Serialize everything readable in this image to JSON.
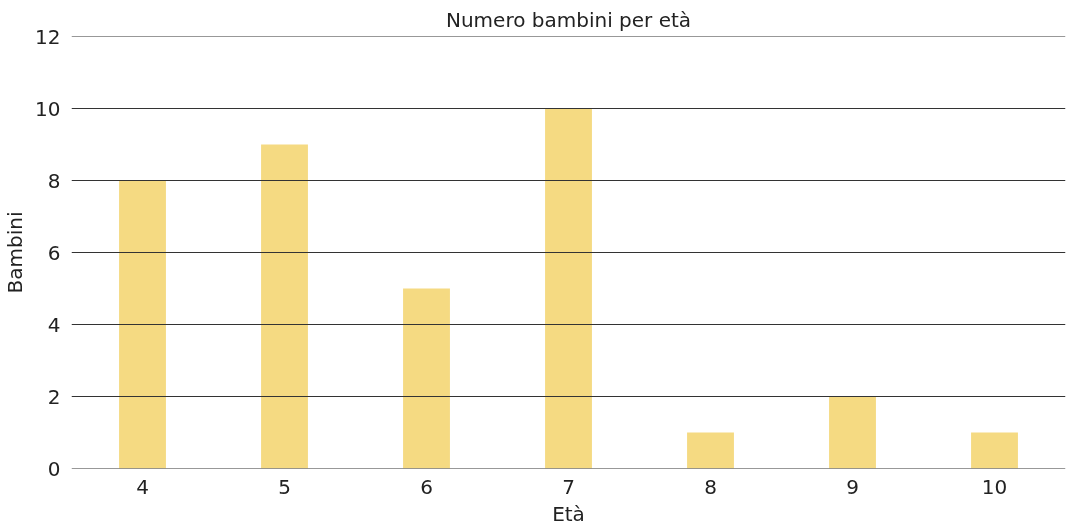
{
  "chart_data": {
    "type": "bar",
    "title": "Numero bambini per età",
    "xlabel": "Età",
    "ylabel": "Bambini",
    "categories": [
      "4",
      "5",
      "6",
      "7",
      "8",
      "9",
      "10"
    ],
    "values": [
      8,
      9,
      5,
      10,
      1,
      2,
      1
    ],
    "color": "#f5da82",
    "ylim": [
      0,
      12
    ],
    "yticks": [
      0,
      2,
      4,
      6,
      8,
      10,
      12
    ],
    "grid": "y"
  }
}
